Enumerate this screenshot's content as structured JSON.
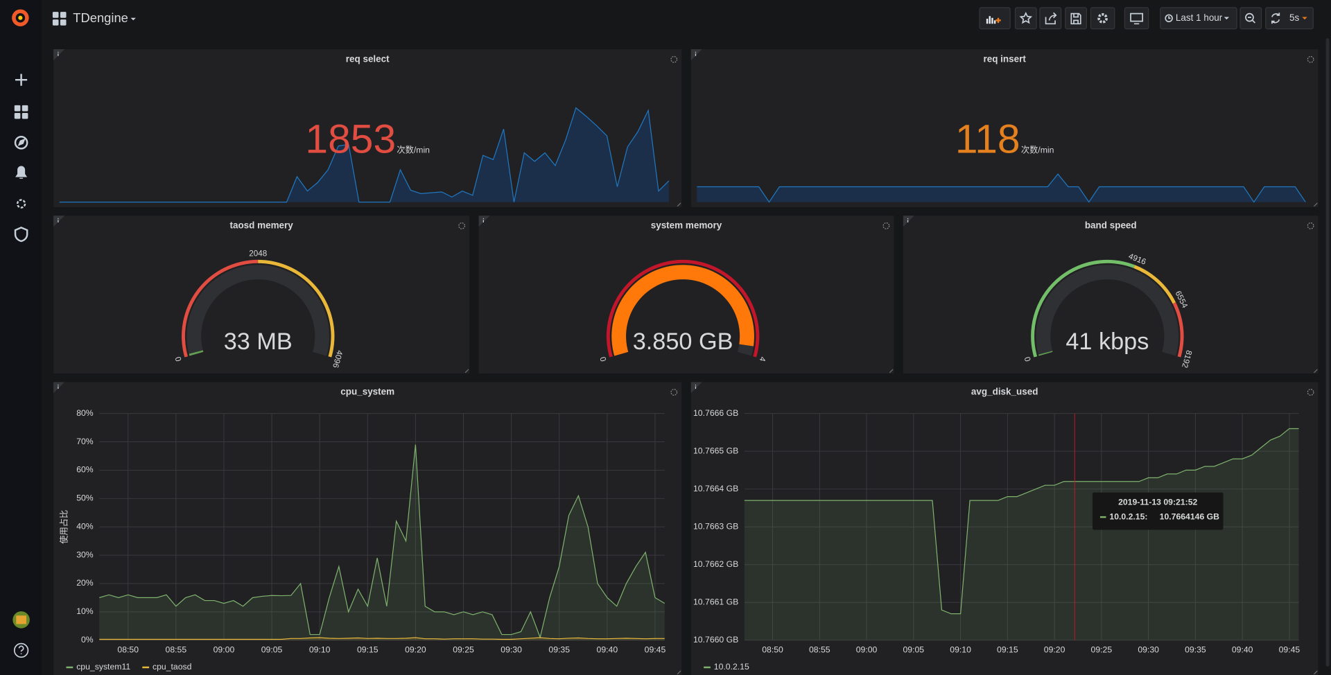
{
  "header": {
    "dashboard_title": "TDengine",
    "time_range": "Last 1 hour",
    "refresh": "5s"
  },
  "chart_data": [
    {
      "type": "stat",
      "title": "req select",
      "value": 1853,
      "unit": "次数/min",
      "color": "#e24d42",
      "sparkline_color": "#1f78c1",
      "sparkline_fill": "#1c2f4a",
      "sparkline": [
        0,
        0,
        0,
        0,
        0,
        0,
        0,
        0,
        0,
        0,
        0,
        0,
        0,
        0,
        0,
        0,
        0,
        0,
        0,
        0,
        0,
        0,
        0,
        600,
        260,
        460,
        760,
        1320,
        1360,
        0,
        0,
        0,
        0,
        760,
        280,
        200,
        220,
        240,
        120,
        260,
        160,
        1100,
        1000,
        1720,
        0,
        1160,
        960,
        1160,
        860,
        1460,
        2220,
        2020,
        1800,
        1560,
        360,
        1300,
        1660,
        2160,
        260,
        500
      ]
    },
    {
      "type": "stat",
      "title": "req insert",
      "value": 118,
      "unit": "次数/min",
      "color": "#e5801f",
      "sparkline_color": "#1f78c1",
      "sparkline_fill": "#1c2f4a",
      "sparkline": [
        360,
        360,
        360,
        360,
        360,
        360,
        360,
        0,
        360,
        360,
        360,
        360,
        360,
        360,
        360,
        360,
        360,
        360,
        360,
        360,
        360,
        360,
        360,
        360,
        360,
        360,
        360,
        360,
        360,
        360,
        360,
        360,
        360,
        360,
        360,
        660,
        360,
        360,
        0,
        360,
        360,
        360,
        360,
        360,
        360,
        360,
        360,
        360,
        360,
        360,
        360,
        360,
        360,
        360,
        0,
        360,
        360,
        360,
        360,
        0
      ]
    },
    {
      "type": "gauge",
      "title": "taosd memery",
      "values": [
        33
      ],
      "value_labels": [
        "33 MB"
      ],
      "ticks": [
        0,
        2048,
        4096
      ],
      "band_colors": [
        "#e24d42",
        "#eab839"
      ],
      "color": "#629e51",
      "value_color": "#7eb26d"
    },
    {
      "type": "gauge",
      "title": "system memory",
      "values": [
        3.85
      ],
      "value_labels": [
        "3.850 GB"
      ],
      "ticks": [
        0,
        4
      ],
      "band_colors": [
        "#c4162a"
      ],
      "color": "#ff780a",
      "value_color": "#e02f44"
    },
    {
      "type": "gauge",
      "title": "band speed",
      "values": [
        41
      ],
      "value_labels": [
        "41 kbps"
      ],
      "ticks": [
        0,
        4916,
        6554,
        8192
      ],
      "band_colors": [
        "#73bf69",
        "#eab839",
        "#e24d42"
      ],
      "color": "#629e51",
      "value_color": "#7eb26d"
    },
    {
      "type": "line",
      "title": "cpu_system",
      "y_label": "使用占比",
      "grid": true,
      "fill": true,
      "x": [
        "08:47",
        "08:48",
        "08:49",
        "08:50",
        "08:51",
        "08:52",
        "08:53",
        "08:54",
        "08:55",
        "08:56",
        "08:57",
        "08:58",
        "08:59",
        "09:00",
        "09:01",
        "09:02",
        "09:03",
        "09:04",
        "09:05",
        "09:06",
        "09:07",
        "09:08",
        "09:09",
        "09:10",
        "09:11",
        "09:12",
        "09:13",
        "09:14",
        "09:15",
        "09:16",
        "09:17",
        "09:18",
        "09:19",
        "09:20",
        "09:21",
        "09:22",
        "09:23",
        "09:24",
        "09:25",
        "09:26",
        "09:27",
        "09:28",
        "09:29",
        "09:30",
        "09:31",
        "09:32",
        "09:33",
        "09:34",
        "09:35",
        "09:36",
        "09:37",
        "09:38",
        "09:39",
        "09:40",
        "09:41",
        "09:42",
        "09:43",
        "09:44",
        "09:45",
        "09:46"
      ],
      "xlim": [
        "08:47",
        "09:46"
      ],
      "xticks": [
        "08:50",
        "08:55",
        "09:00",
        "09:05",
        "09:10",
        "09:15",
        "09:20",
        "09:25",
        "09:30",
        "09:35",
        "09:40",
        "09:45"
      ],
      "ylim": [
        0,
        80
      ],
      "yticks": [
        {
          "value": 0,
          "label": "0%"
        },
        {
          "value": 10,
          "label": "10%"
        },
        {
          "value": 20,
          "label": "20%"
        },
        {
          "value": 30,
          "label": "30%"
        },
        {
          "value": 40,
          "label": "40%"
        },
        {
          "value": 50,
          "label": "50%"
        },
        {
          "value": 60,
          "label": "60%"
        },
        {
          "value": 70,
          "label": "70%"
        },
        {
          "value": 80,
          "label": "80%"
        }
      ],
      "series": [
        {
          "name": "cpu_system11",
          "color": "#7eb26d",
          "values": [
            15,
            16,
            15,
            16,
            15,
            15,
            15,
            16,
            12,
            15,
            16,
            14,
            14,
            13,
            14,
            12,
            15,
            15.5,
            15.8,
            15.7,
            15.8,
            20,
            2,
            2,
            15,
            26,
            10,
            18,
            12,
            29,
            12,
            42,
            35,
            69,
            12,
            10,
            10,
            9,
            10,
            9,
            10,
            9,
            2,
            2,
            3,
            10,
            1,
            15,
            26,
            44,
            51,
            40,
            20,
            15,
            12,
            20,
            26,
            31,
            15,
            13
          ]
        },
        {
          "name": "cpu_taosd",
          "color": "#eab839",
          "values": [
            0.3,
            0.3,
            0.3,
            0.3,
            0.3,
            0.3,
            0.3,
            0.3,
            0.3,
            0.3,
            0.3,
            0.3,
            0.3,
            0.3,
            0.3,
            0.3,
            0.3,
            0.3,
            0.3,
            0.3,
            0.6,
            0.6,
            0.8,
            0.9,
            0.7,
            0.6,
            0.7,
            0.8,
            0.6,
            0.7,
            0.6,
            0.6,
            0.7,
            0.9,
            0.5,
            0.5,
            0.4,
            0.5,
            0.5,
            0.5,
            0.4,
            0.4,
            0.3,
            0.3,
            0.5,
            0.7,
            0.9,
            0.6,
            0.5,
            0.7,
            0.8,
            0.6,
            0.5,
            0.5,
            0.6,
            0.7,
            0.6,
            0.5,
            0.6,
            0.6
          ]
        }
      ]
    },
    {
      "type": "line",
      "title": "avg_disk_used",
      "grid": true,
      "fill": true,
      "x": [
        "08:47",
        "08:48",
        "08:49",
        "08:50",
        "08:51",
        "08:52",
        "08:53",
        "08:54",
        "08:55",
        "08:56",
        "08:57",
        "08:58",
        "08:59",
        "09:00",
        "09:01",
        "09:02",
        "09:03",
        "09:04",
        "09:05",
        "09:06",
        "09:07",
        "09:08",
        "09:09",
        "09:10",
        "09:11",
        "09:12",
        "09:13",
        "09:14",
        "09:15",
        "09:16",
        "09:17",
        "09:18",
        "09:19",
        "09:20",
        "09:21",
        "09:22",
        "09:23",
        "09:24",
        "09:25",
        "09:26",
        "09:27",
        "09:28",
        "09:29",
        "09:30",
        "09:31",
        "09:32",
        "09:33",
        "09:34",
        "09:35",
        "09:36",
        "09:37",
        "09:38",
        "09:39",
        "09:40",
        "09:41",
        "09:42",
        "09:43",
        "09:44",
        "09:45",
        "09:46"
      ],
      "xlim": [
        "08:47",
        "09:46"
      ],
      "xticks": [
        "08:50",
        "08:55",
        "09:00",
        "09:05",
        "09:10",
        "09:15",
        "09:20",
        "09:25",
        "09:30",
        "09:35",
        "09:40",
        "09:45"
      ],
      "ylim": [
        10.766,
        10.7666
      ],
      "yticks": [
        {
          "value": 10.766,
          "label": "10.7660 GB"
        },
        {
          "value": 10.7661,
          "label": "10.7661 GB"
        },
        {
          "value": 10.7662,
          "label": "10.7662 GB"
        },
        {
          "value": 10.7663,
          "label": "10.7663 GB"
        },
        {
          "value": 10.7664,
          "label": "10.7664 GB"
        },
        {
          "value": 10.7665,
          "label": "10.7665 GB"
        },
        {
          "value": 10.7666,
          "label": "10.7666 GB"
        }
      ],
      "series": [
        {
          "name": "10.0.2.15",
          "color": "#7eb26d",
          "values": [
            10.76637,
            10.76637,
            10.76637,
            10.76637,
            10.76637,
            10.76637,
            10.76637,
            10.76637,
            10.76637,
            10.76637,
            10.76637,
            10.76637,
            10.76637,
            10.76637,
            10.76637,
            10.76637,
            10.76637,
            10.76637,
            10.76637,
            10.76637,
            10.76637,
            10.76608,
            10.76607,
            10.76607,
            10.76637,
            10.76637,
            10.76637,
            10.76637,
            10.76638,
            10.76638,
            10.76639,
            10.7664,
            10.76641,
            10.76641,
            10.76642,
            10.76642,
            10.76642,
            10.76642,
            10.76642,
            10.76642,
            10.76642,
            10.76642,
            10.76642,
            10.76643,
            10.76643,
            10.76644,
            10.76644,
            10.76645,
            10.76645,
            10.76646,
            10.76646,
            10.76647,
            10.76648,
            10.76648,
            10.76649,
            10.76651,
            10.76653,
            10.76654,
            10.76656,
            10.76656
          ]
        }
      ],
      "tooltip": {
        "title": "2019-11-13 09:21:52",
        "series": "10.0.2.15:",
        "value": "10.7664146 GB"
      }
    }
  ]
}
